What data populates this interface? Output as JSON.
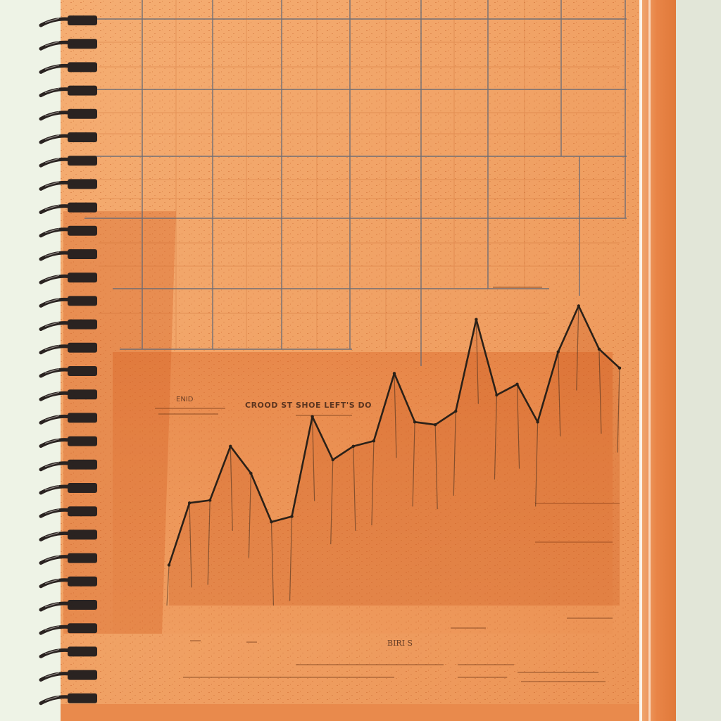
{
  "labels": {
    "header_smudge": "CROOD ST SHOE LEFT'S DO",
    "left_smudge": "ENID",
    "footer_smudge": "BIRI S"
  },
  "colors": {
    "background": "#eef3e6",
    "page": "#ef9a58",
    "page_light": "#f4ad70",
    "page_dark": "#d9733b",
    "cover_edge": "#e9803f",
    "grid": "#4f5f73",
    "ink": "#2b2118",
    "spiral": "#2a2321"
  },
  "chart_data": {
    "type": "line",
    "title": "",
    "xlabel": "",
    "ylabel": "",
    "grid": true,
    "x": [
      1,
      2,
      3,
      4,
      5,
      6,
      7,
      8,
      9,
      10,
      11,
      12,
      13,
      14,
      15,
      16,
      17,
      18,
      19,
      20,
      21,
      22,
      23
    ],
    "values": [
      1.5,
      3.8,
      3.9,
      5.9,
      4.9,
      3.1,
      3.3,
      7.0,
      5.4,
      5.9,
      6.1,
      8.6,
      6.8,
      6.7,
      7.2,
      10.6,
      7.8,
      8.2,
      6.8,
      9.4,
      11.1,
      9.5,
      8.8
    ],
    "ylim": [
      0,
      12
    ]
  }
}
